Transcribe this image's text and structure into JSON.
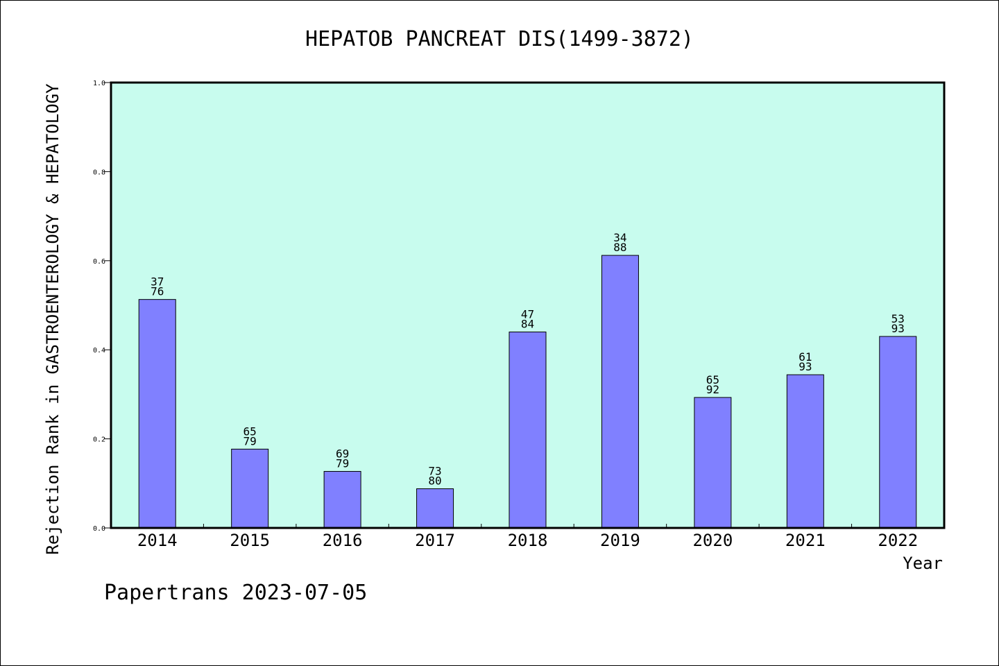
{
  "chart_data": {
    "type": "bar",
    "title": "HEPATOB PANCREAT DIS(1499-3872)",
    "xlabel": "Year",
    "ylabel": "Rejection Rank in GASTROENTEROLOGY & HEPATOLOGY",
    "ylim": [
      0,
      1.0
    ],
    "yticks": [
      "0.0",
      "0.2",
      "0.4",
      "0.6",
      "0.8",
      "1.0"
    ],
    "categories": [
      "2014",
      "2015",
      "2016",
      "2017",
      "2018",
      "2019",
      "2020",
      "2021",
      "2022"
    ],
    "values": [
      0.513,
      0.177,
      0.127,
      0.088,
      0.44,
      0.612,
      0.293,
      0.344,
      0.43
    ],
    "label_top": [
      "37",
      "65",
      "69",
      "73",
      "47",
      "34",
      "65",
      "61",
      "53"
    ],
    "label_bottom": [
      "76",
      "79",
      "79",
      "80",
      "84",
      "88",
      "92",
      "93",
      "93"
    ],
    "grid": false,
    "colors": {
      "plot_background": "#c8fcee",
      "bar_fill": "#8080ff",
      "bar_stroke": "#000000"
    }
  },
  "footer": {
    "credit": "Papertrans 2023-07-05"
  }
}
